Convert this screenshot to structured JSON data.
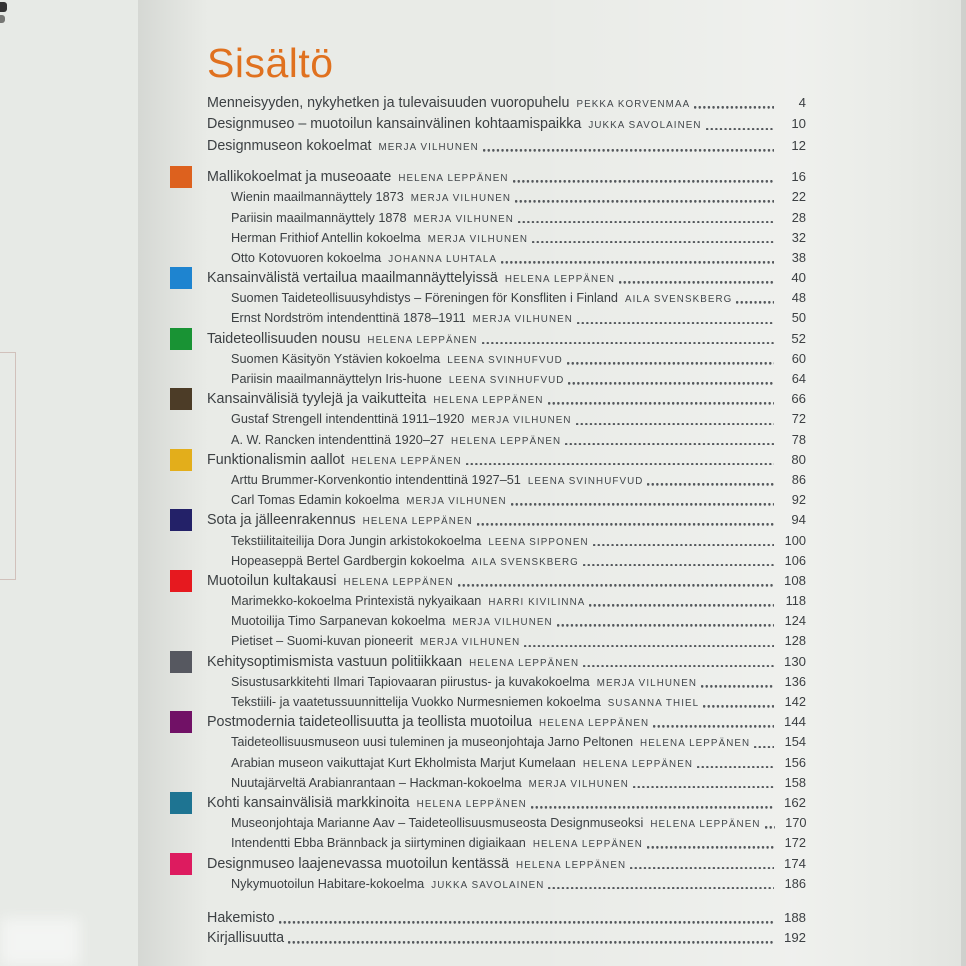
{
  "page": {
    "title": "Sisältö"
  },
  "palette": {
    "paper": "#e9ebe7",
    "text": "#3c4043",
    "title_orange": "#e0711f",
    "leader_dots": "#53575b"
  },
  "toc": {
    "entries": [
      {
        "level": 0,
        "intro": true,
        "title": "Menneisyyden, nykyhetken ja tulevaisuuden vuoropuhelu",
        "author": "PEKKA KORVENMAA",
        "page": "4"
      },
      {
        "level": 0,
        "intro": true,
        "title": "Designmuseo – muotoilun kansainvälinen kohtaamispaikka",
        "author": "JUKKA SAVOLAINEN",
        "page": "10"
      },
      {
        "level": 0,
        "intro": true,
        "title": "Designmuseon kokoelmat",
        "author": "MERJA VILHUNEN",
        "page": "12"
      },
      {
        "level": 0,
        "gap": true,
        "color": "#dd611e",
        "title": "Mallikokoelmat ja museoaate",
        "author": "HELENA LEPPÄNEN",
        "page": "16"
      },
      {
        "level": 1,
        "title": "Wienin maailmannäyttely 1873",
        "author": "MERJA VILHUNEN",
        "page": "22"
      },
      {
        "level": 1,
        "title": "Pariisin maailmannäyttely 1878",
        "author": "MERJA VILHUNEN",
        "page": "28"
      },
      {
        "level": 1,
        "title": "Herman Frithiof Antellin kokoelma",
        "author": "MERJA VILHUNEN",
        "page": "32"
      },
      {
        "level": 1,
        "title": "Otto Kotovuoren kokoelma",
        "author": "JOHANNA LUHTALA",
        "page": "38"
      },
      {
        "level": 0,
        "color": "#1e84d0",
        "title": "Kansainvälistä vertailua maailmannäyttelyissä",
        "author": "HELENA LEPPÄNEN",
        "page": "40"
      },
      {
        "level": 1,
        "title": "Suomen Taideteollisuusyhdistys – Föreningen för Konsfliten i Finland",
        "author": "AILA SVENSKBERG",
        "page": "48"
      },
      {
        "level": 1,
        "title": "Ernst Nordström intendenttinä 1878–1911",
        "author": "MERJA VILHUNEN",
        "page": "50"
      },
      {
        "level": 0,
        "color": "#199334",
        "title": "Taideteollisuuden nousu",
        "author": "HELENA LEPPÄNEN",
        "page": "52"
      },
      {
        "level": 1,
        "title": "Suomen Käsityön Ystävien kokoelma",
        "author": "LEENA SVINHUFVUD",
        "page": "60"
      },
      {
        "level": 1,
        "title": "Pariisin maailmannäyttelyn Iris-huone",
        "author": "LEENA SVINHUFVUD",
        "page": "64"
      },
      {
        "level": 0,
        "color": "#4c3c27",
        "title": "Kansainvälisiä tyylejä ja vaikutteita",
        "author": "HELENA LEPPÄNEN",
        "page": "66"
      },
      {
        "level": 1,
        "title": "Gustaf Strengell intendenttinä 1911–1920",
        "author": "MERJA VILHUNEN",
        "page": "72"
      },
      {
        "level": 1,
        "title": "A. W. Rancken intendenttinä 1920–27",
        "author": "HELENA LEPPÄNEN",
        "page": "78"
      },
      {
        "level": 0,
        "color": "#e3ae1b",
        "title": "Funktionalismin aallot",
        "author": "HELENA LEPPÄNEN",
        "page": "80"
      },
      {
        "level": 1,
        "title": "Arttu Brummer-Korvenkontio intendenttinä 1927–51",
        "author": "LEENA SVINHUFVUD",
        "page": "86"
      },
      {
        "level": 1,
        "title": "Carl Tomas Edamin kokoelma",
        "author": "MERJA VILHUNEN",
        "page": "92"
      },
      {
        "level": 0,
        "color": "#232168",
        "title": "Sota ja jälleenrakennus",
        "author": "HELENA LEPPÄNEN",
        "page": "94"
      },
      {
        "level": 1,
        "title": "Tekstiilitaiteilija Dora Jungin arkistokokoelma",
        "author": "LEENA SIPPONEN",
        "page": "100"
      },
      {
        "level": 1,
        "title": "Hopeaseppä Bertel Gardbergin kokoelma",
        "author": "AILA SVENSKBERG",
        "page": "106"
      },
      {
        "level": 0,
        "color": "#e6191f",
        "title": "Muotoilun kultakausi",
        "author": "HELENA LEPPÄNEN",
        "page": "108"
      },
      {
        "level": 1,
        "title": "Marimekko-kokoelma Printexistä nykyaikaan",
        "author": "HARRI KIVILINNA",
        "page": "118"
      },
      {
        "level": 1,
        "title": "Muotoilija Timo Sarpanevan kokoelma",
        "author": "MERJA VILHUNEN",
        "page": "124"
      },
      {
        "level": 1,
        "title": "Pietiset – Suomi-kuvan pioneerit",
        "author": "MERJA VILHUNEN",
        "page": "128"
      },
      {
        "level": 0,
        "color": "#565860",
        "title": "Kehitysoptimismista vastuun politiikkaan",
        "author": "HELENA LEPPÄNEN",
        "page": "130"
      },
      {
        "level": 1,
        "title": "Sisustusarkkitehti Ilmari Tapiovaaran piirustus- ja kuvakokoelma",
        "author": "MERJA VILHUNEN",
        "page": "136"
      },
      {
        "level": 1,
        "title": "Tekstiili- ja vaatetussuunnittelija Vuokko Nurmesniemen kokoelma",
        "author": "SUSANNA THIEL",
        "page": "142"
      },
      {
        "level": 0,
        "color": "#711166",
        "title": "Postmodernia taideteollisuutta ja teollista muotoilua",
        "author": "HELENA LEPPÄNEN",
        "page": "144"
      },
      {
        "level": 1,
        "title": "Taideteollisuusmuseon uusi tuleminen ja museonjohtaja Jarno Peltonen",
        "author": "HELENA LEPPÄNEN",
        "page": "154"
      },
      {
        "level": 1,
        "title": "Arabian museon vaikuttajat Kurt Ekholmista Marjut Kumelaan",
        "author": "HELENA LEPPÄNEN",
        "page": "156"
      },
      {
        "level": 1,
        "title": "Nuutajärveltä Arabianrantaan – Hackman-kokoelma",
        "author": "MERJA VILHUNEN",
        "page": "158"
      },
      {
        "level": 0,
        "color": "#1e7492",
        "title": "Kohti kansainvälisiä markkinoita",
        "author": "HELENA LEPPÄNEN",
        "page": "162"
      },
      {
        "level": 1,
        "title": "Museonjohtaja Marianne Aav – Taideteollisuusmuseosta Designmuseoksi",
        "author": "HELENA LEPPÄNEN",
        "page": "170"
      },
      {
        "level": 1,
        "title": "Intendentti Ebba Brännback ja siirtyminen digiaikaan",
        "author": "HELENA LEPPÄNEN",
        "page": "172"
      },
      {
        "level": 0,
        "color": "#dd1b5f",
        "title": "Designmuseo laajenevassa muotoilun kentässä",
        "author": "HELENA LEPPÄNEN",
        "page": "174"
      },
      {
        "level": 1,
        "title": "Nykymuotoilun Habitare-kokoelma",
        "author": "JUKKA SAVOLAINEN",
        "page": "186"
      },
      {
        "level": 0,
        "gap_end": true,
        "title": "Hakemisto",
        "author": null,
        "page": "188"
      },
      {
        "level": 0,
        "title": "Kirjallisuutta",
        "author": null,
        "page": "192"
      }
    ]
  }
}
